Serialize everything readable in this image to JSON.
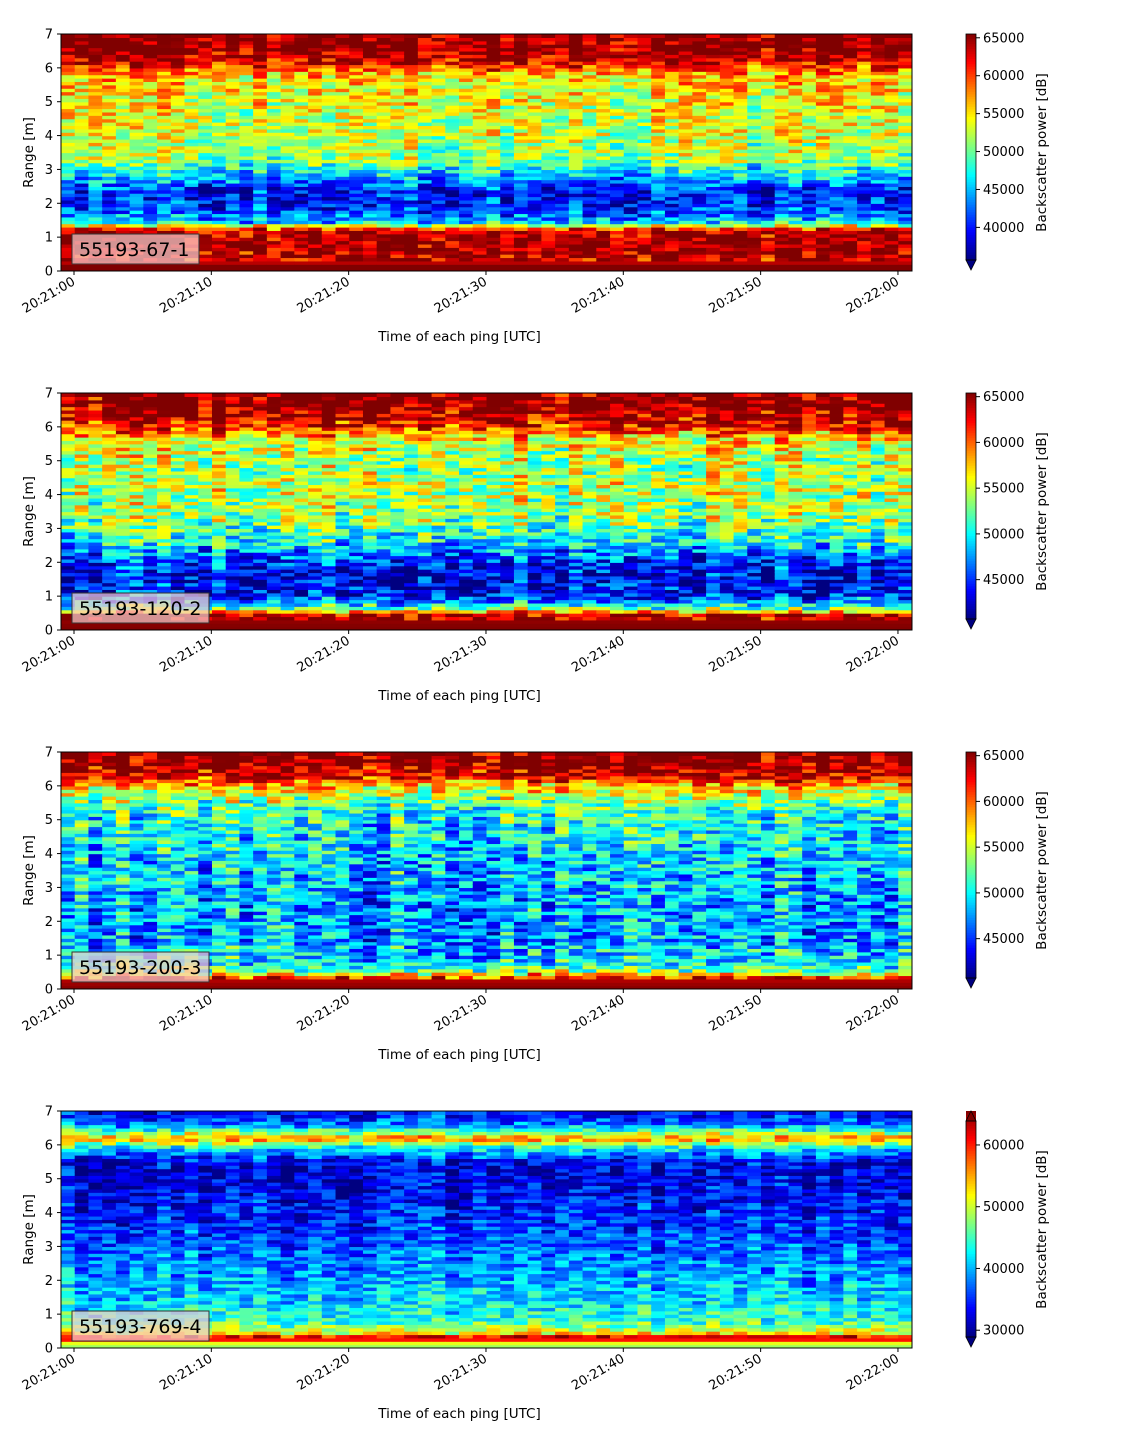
{
  "chart_data": [
    {
      "type": "heatmap",
      "panel_label": "55193-67-1",
      "xlabel": "Time of each ping [UTC]",
      "ylabel": "Range [m]",
      "colorbar_label": "Backscatter power [dB]",
      "colormap": "jet",
      "xlim": [
        "20:21:00",
        "20:22:00"
      ],
      "x_ticks": [
        "20:21:00",
        "20:21:10",
        "20:21:20",
        "20:21:30",
        "20:21:40",
        "20:21:50",
        "20:22:00"
      ],
      "ylim": [
        0,
        7
      ],
      "y_ticks": [
        0,
        1,
        2,
        3,
        4,
        5,
        6,
        7
      ],
      "clim": [
        35700,
        65500
      ],
      "colorbar_ticks": [
        40000,
        45000,
        50000,
        55000,
        60000,
        65000
      ],
      "colorbar_extend": "min",
      "pings": 62,
      "profile": [
        [
          0.0,
          65500
        ],
        [
          0.15,
          65500
        ],
        [
          0.3,
          63000
        ],
        [
          0.8,
          65000
        ],
        [
          1.2,
          64000
        ],
        [
          1.45,
          46000
        ],
        [
          1.8,
          41000
        ],
        [
          2.3,
          39000
        ],
        [
          2.8,
          45000
        ],
        [
          3.3,
          51000
        ],
        [
          4.2,
          53000
        ],
        [
          5.2,
          54000
        ],
        [
          5.8,
          56000
        ],
        [
          6.2,
          63000
        ],
        [
          6.6,
          65500
        ],
        [
          7.0,
          65500
        ]
      ]
    },
    {
      "type": "heatmap",
      "panel_label": "55193-120-2",
      "xlabel": "Time of each ping [UTC]",
      "ylabel": "Range [m]",
      "colorbar_label": "Backscatter power [dB]",
      "colormap": "jet",
      "xlim": [
        "20:21:00",
        "20:22:00"
      ],
      "x_ticks": [
        "20:21:00",
        "20:21:10",
        "20:21:20",
        "20:21:30",
        "20:21:40",
        "20:21:50",
        "20:22:00"
      ],
      "ylim": [
        0,
        7
      ],
      "y_ticks": [
        0,
        1,
        2,
        3,
        4,
        5,
        6,
        7
      ],
      "clim": [
        40700,
        65400
      ],
      "colorbar_ticks": [
        45000,
        50000,
        55000,
        60000,
        65000
      ],
      "colorbar_extend": "min",
      "pings": 62,
      "profile": [
        [
          0.0,
          65400
        ],
        [
          0.1,
          65400
        ],
        [
          0.45,
          64500
        ],
        [
          0.65,
          52000
        ],
        [
          1.0,
          44500
        ],
        [
          1.6,
          43000
        ],
        [
          2.1,
          45500
        ],
        [
          2.6,
          50000
        ],
        [
          3.3,
          53500
        ],
        [
          4.2,
          54500
        ],
        [
          5.0,
          54000
        ],
        [
          5.6,
          56000
        ],
        [
          6.1,
          63000
        ],
        [
          6.6,
          65400
        ],
        [
          7.0,
          65400
        ]
      ]
    },
    {
      "type": "heatmap",
      "panel_label": "55193-200-3",
      "xlabel": "Time of each ping [UTC]",
      "ylabel": "Range [m]",
      "colorbar_label": "Backscatter power [dB]",
      "colormap": "jet",
      "xlim": [
        "20:21:00",
        "20:22:00"
      ],
      "x_ticks": [
        "20:21:00",
        "20:21:10",
        "20:21:20",
        "20:21:30",
        "20:21:40",
        "20:21:50",
        "20:22:00"
      ],
      "ylim": [
        0,
        7
      ],
      "y_ticks": [
        0,
        1,
        2,
        3,
        4,
        5,
        6,
        7
      ],
      "clim": [
        40700,
        65400
      ],
      "colorbar_ticks": [
        45000,
        50000,
        55000,
        60000,
        65000
      ],
      "colorbar_extend": "min",
      "pings": 62,
      "profile": [
        [
          0.0,
          65400
        ],
        [
          0.1,
          65000
        ],
        [
          0.3,
          64000
        ],
        [
          0.5,
          54000
        ],
        [
          0.8,
          49500
        ],
        [
          1.5,
          47500
        ],
        [
          2.5,
          47500
        ],
        [
          3.5,
          48500
        ],
        [
          4.5,
          49500
        ],
        [
          5.3,
          51000
        ],
        [
          5.9,
          56000
        ],
        [
          6.3,
          63000
        ],
        [
          6.7,
          65400
        ],
        [
          7.0,
          65400
        ]
      ]
    },
    {
      "type": "heatmap",
      "panel_label": "55193-769-4",
      "xlabel": "Time of each ping [UTC]",
      "ylabel": "Range [m]",
      "colorbar_label": "Backscatter power [dB]",
      "colormap": "jet",
      "xlim": [
        "20:21:00",
        "20:22:00"
      ],
      "x_ticks": [
        "20:21:00",
        "20:21:10",
        "20:21:20",
        "20:21:30",
        "20:21:40",
        "20:21:50",
        "20:22:00"
      ],
      "ylim": [
        0,
        7
      ],
      "y_ticks": [
        0,
        1,
        2,
        3,
        4,
        5,
        6,
        7
      ],
      "clim": [
        28900,
        65500
      ],
      "colorbar_ticks": [
        30000,
        40000,
        50000,
        60000
      ],
      "colorbar_extend": "both",
      "pings": 62,
      "profile": [
        [
          0.0,
          47000
        ],
        [
          0.15,
          51000
        ],
        [
          0.3,
          65000
        ],
        [
          0.45,
          52000
        ],
        [
          0.8,
          44000
        ],
        [
          1.5,
          41000
        ],
        [
          2.5,
          38500
        ],
        [
          3.5,
          35500
        ],
        [
          4.5,
          33500
        ],
        [
          5.5,
          32500
        ],
        [
          5.9,
          42000
        ],
        [
          6.2,
          56000
        ],
        [
          6.6,
          38000
        ],
        [
          7.0,
          33000
        ]
      ]
    }
  ]
}
